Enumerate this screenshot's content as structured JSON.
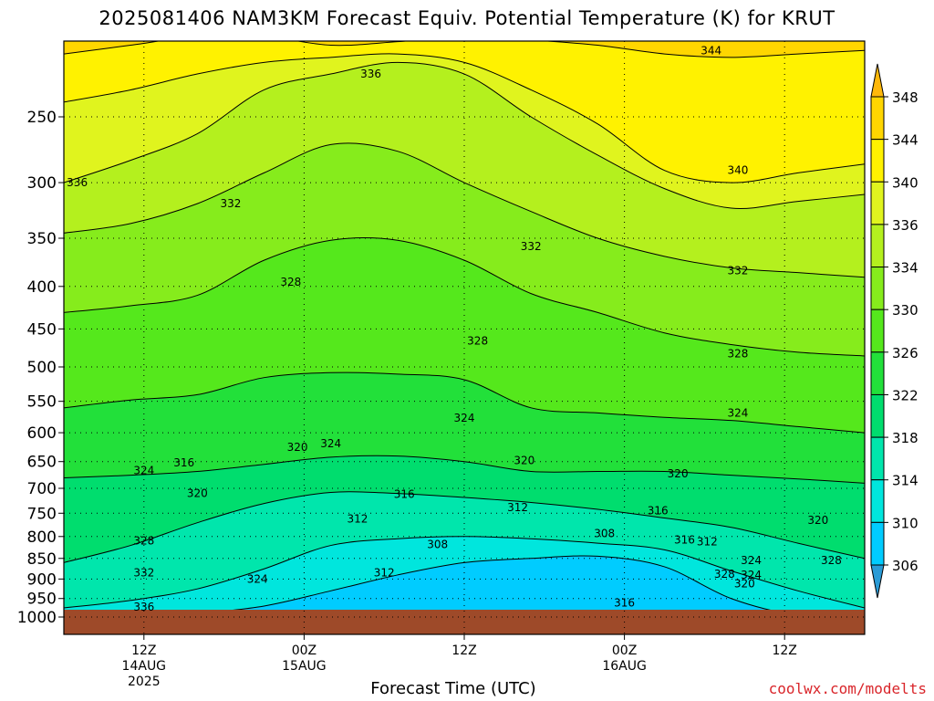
{
  "title": "2025081406 NAM3KM Forecast Equiv. Potential Temperature (K) for KRUT",
  "credit": "coolwx.com/modelts",
  "chart_data": {
    "type": "heatmap",
    "title": "2025081406 NAM3KM Forecast Equiv. Potential Temperature (K) for KRUT",
    "xlabel": "Forecast Time (UTC)",
    "ylabel": "",
    "x_range_hours": [
      0,
      60
    ],
    "y_axis": {
      "scale": "log-pressure",
      "ylim_hPa": [
        1000,
        200
      ],
      "ticks": [
        "250",
        "300",
        "350",
        "400",
        "450",
        "500",
        "550",
        "600",
        "650",
        "700",
        "750",
        "800",
        "850",
        "900",
        "950",
        "1000"
      ]
    },
    "x_ticks": [
      {
        "hour": 6,
        "lines": [
          "12Z",
          "14AUG",
          "2025"
        ]
      },
      {
        "hour": 18,
        "lines": [
          "00Z",
          "15AUG"
        ]
      },
      {
        "hour": 30,
        "lines": [
          "12Z"
        ]
      },
      {
        "hour": 42,
        "lines": [
          "00Z",
          "16AUG"
        ]
      },
      {
        "hour": 54,
        "lines": [
          "12Z"
        ]
      }
    ],
    "colorbar": {
      "ticks": [
        "348",
        "344",
        "340",
        "336",
        "334",
        "330",
        "326",
        "322",
        "318",
        "314",
        "310",
        "306"
      ],
      "levels": [
        302,
        306,
        310,
        314,
        318,
        322,
        326,
        330,
        334,
        336,
        340,
        344,
        348,
        352
      ],
      "colors": [
        "#2a9bd6",
        "#00ccff",
        "#00e6dd",
        "#00e6ac",
        "#00dd6e",
        "#22e03a",
        "#55e81c",
        "#86ec1c",
        "#b4f01e",
        "#e0f41e",
        "#fff200",
        "#ffd600",
        "#ffb80a"
      ]
    },
    "contour_interval_K": 4,
    "ground": {
      "pressure_hPa": 980,
      "color": "#9e4a29"
    },
    "isopleths": [
      {
        "value": 344,
        "p": [
          210,
          205,
          200,
          200,
          205,
          203,
          200,
          202,
          205,
          210,
          212,
          210,
          208
        ]
      },
      {
        "value": 340,
        "p": [
          240,
          232,
          222,
          215,
          212,
          210,
          215,
          232,
          255,
          290,
          300,
          292,
          285
        ]
      },
      {
        "value": 336,
        "p": [
          300,
          282,
          262,
          232,
          222,
          215,
          222,
          250,
          278,
          305,
          322,
          316,
          310
        ]
      },
      {
        "value": 332,
        "p": [
          345,
          336,
          318,
          292,
          270,
          275,
          300,
          325,
          350,
          368,
          380,
          385,
          390
        ]
      },
      {
        "value": 328,
        "p": [
          430,
          422,
          410,
          372,
          352,
          352,
          372,
          408,
          430,
          455,
          470,
          480,
          485
        ]
      },
      {
        "value": 324,
        "p": [
          560,
          548,
          540,
          515,
          508,
          510,
          518,
          560,
          568,
          575,
          580,
          590,
          600
        ]
      },
      {
        "value": 320,
        "p": [
          680,
          675,
          668,
          655,
          642,
          640,
          650,
          668,
          668,
          668,
          675,
          682,
          690
        ]
      },
      {
        "value": 316,
        "p": [
          860,
          820,
          770,
          730,
          708,
          710,
          718,
          728,
          742,
          760,
          780,
          815,
          850
        ]
      },
      {
        "value": 312,
        "p": [
          975,
          955,
          925,
          875,
          820,
          805,
          800,
          805,
          815,
          830,
          880,
          930,
          975
        ]
      },
      {
        "value": 308,
        "p": [
          1000,
          1000,
          990,
          970,
          930,
          890,
          860,
          850,
          845,
          870,
          950,
          995,
          1000
        ]
      }
    ],
    "contour_labels": [
      {
        "text": "344",
        "hour": 48.5,
        "p": 208
      },
      {
        "text": "340",
        "hour": 50.5,
        "p": 290
      },
      {
        "text": "336",
        "hour": 23,
        "p": 222
      },
      {
        "text": "336",
        "hour": 1,
        "p": 300
      },
      {
        "text": "332",
        "hour": 12.5,
        "p": 318
      },
      {
        "text": "332",
        "hour": 35,
        "p": 358
      },
      {
        "text": "332",
        "hour": 50.5,
        "p": 383
      },
      {
        "text": "328",
        "hour": 17,
        "p": 395
      },
      {
        "text": "328",
        "hour": 31,
        "p": 465
      },
      {
        "text": "328",
        "hour": 50.5,
        "p": 482
      },
      {
        "text": "324",
        "hour": 30,
        "p": 576
      },
      {
        "text": "324",
        "hour": 50.5,
        "p": 568
      },
      {
        "text": "324",
        "hour": 20,
        "p": 618
      },
      {
        "text": "324",
        "hour": 6,
        "p": 666
      },
      {
        "text": "320",
        "hour": 17.5,
        "p": 625
      },
      {
        "text": "320",
        "hour": 34.5,
        "p": 648
      },
      {
        "text": "320",
        "hour": 46,
        "p": 672
      },
      {
        "text": "316",
        "hour": 9,
        "p": 652
      },
      {
        "text": "316",
        "hour": 25.5,
        "p": 712
      },
      {
        "text": "316",
        "hour": 44.5,
        "p": 745
      },
      {
        "text": "312",
        "hour": 22,
        "p": 762
      },
      {
        "text": "312",
        "hour": 34,
        "p": 738
      },
      {
        "text": "308",
        "hour": 28,
        "p": 818
      },
      {
        "text": "308",
        "hour": 40.5,
        "p": 793
      },
      {
        "text": "316",
        "hour": 46.5,
        "p": 808
      },
      {
        "text": "312",
        "hour": 48.2,
        "p": 812
      },
      {
        "text": "320",
        "hour": 10,
        "p": 710
      },
      {
        "text": "328",
        "hour": 6,
        "p": 810
      },
      {
        "text": "320",
        "hour": 56.5,
        "p": 765
      },
      {
        "text": "328",
        "hour": 57.5,
        "p": 855
      },
      {
        "text": "324",
        "hour": 51.5,
        "p": 855
      },
      {
        "text": "324",
        "hour": 51.5,
        "p": 890
      },
      {
        "text": "328",
        "hour": 49.5,
        "p": 888
      },
      {
        "text": "320",
        "hour": 51,
        "p": 912
      },
      {
        "text": "312",
        "hour": 24,
        "p": 885
      },
      {
        "text": "332",
        "hour": 6,
        "p": 885
      },
      {
        "text": "324",
        "hour": 14.5,
        "p": 900
      },
      {
        "text": "316",
        "hour": 42,
        "p": 962
      },
      {
        "text": "336",
        "hour": 6,
        "p": 972
      }
    ]
  }
}
